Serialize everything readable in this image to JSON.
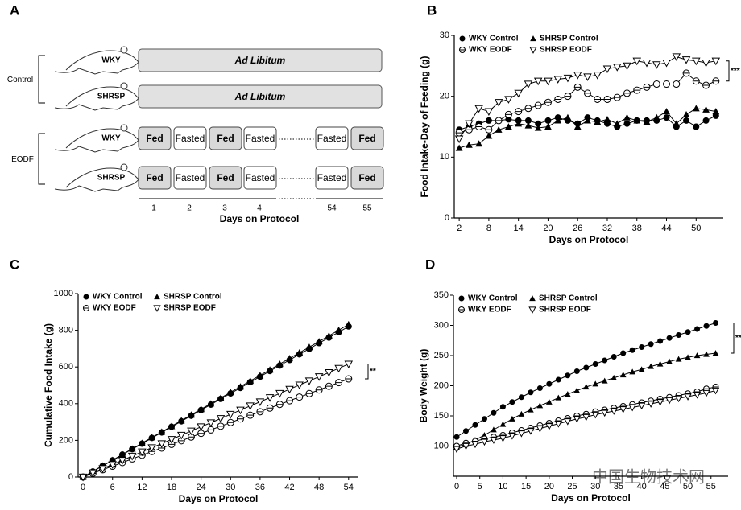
{
  "panel_labels": [
    "A",
    "B",
    "C",
    "D"
  ],
  "protocol": {
    "groups": [
      {
        "label": "Control",
        "rows": [
          {
            "strain": "WKY",
            "schedule": "Ad Libitum"
          },
          {
            "strain": "SHRSP",
            "schedule": "Ad Libitum"
          }
        ]
      },
      {
        "label": "EODF",
        "rows": [
          {
            "strain": "WKY",
            "cells": [
              "Fed",
              "Fasted",
              "Fed",
              "Fasted",
              "Fasted",
              "Fed"
            ]
          },
          {
            "strain": "SHRSP",
            "cells": [
              "Fed",
              "Fasted",
              "Fed",
              "Fasted",
              "Fasted",
              "Fed"
            ]
          }
        ]
      }
    ],
    "days": [
      "1",
      "2",
      "3",
      "4",
      "54",
      "55"
    ],
    "axis_label": "Days on Protocol"
  },
  "chart_data": [
    {
      "type": "line",
      "x_label": "Days on Protocol",
      "y_label": "Food Intake-Day of Feeding (g)",
      "x": [
        2,
        4,
        6,
        8,
        10,
        12,
        14,
        16,
        18,
        20,
        22,
        24,
        26,
        28,
        30,
        32,
        34,
        36,
        38,
        40,
        42,
        44,
        46,
        48,
        50,
        52,
        54
      ],
      "xlim": [
        1,
        55.5
      ],
      "xticks": [
        2,
        8,
        14,
        20,
        26,
        32,
        38,
        44,
        50
      ],
      "ylim": [
        0,
        30
      ],
      "yticks": [
        0,
        10,
        20,
        30
      ],
      "grid": false,
      "legend": "upper left",
      "annotation": "***",
      "series": [
        {
          "name": "WKY Control",
          "color": "#000000",
          "marker": "circle",
          "values": [
            14.5,
            15,
            15.5,
            16,
            16,
            16.2,
            16,
            16,
            15.5,
            16,
            16.5,
            16,
            15.5,
            16.5,
            16,
            15.5,
            15,
            15.5,
            16,
            16,
            16,
            16.5,
            15,
            16,
            15,
            16,
            16.8
          ]
        },
        {
          "name": "SHRSP Control",
          "color": "#000000",
          "marker": "triangle",
          "values": [
            11.5,
            12,
            12.2,
            13.5,
            14.5,
            15,
            15.5,
            15.2,
            14.8,
            15,
            16,
            16.5,
            15,
            16,
            15.8,
            16.2,
            15.5,
            16.5,
            16,
            15.8,
            16.5,
            17.5,
            15.5,
            17,
            18,
            17.8,
            17.5
          ]
        },
        {
          "name": "WKY EODF",
          "color": "#000000",
          "marker": "circle-open",
          "values": [
            14,
            14.5,
            15,
            14.5,
            16,
            17,
            17.5,
            18,
            18.5,
            19,
            19.5,
            20,
            21.5,
            20.5,
            19.5,
            19.5,
            19.8,
            20.5,
            21,
            21.5,
            22,
            22,
            22,
            23.8,
            22.5,
            21.8,
            22.5
          ]
        },
        {
          "name": "SHRSP EODF",
          "color": "#000000",
          "marker": "triangle-down-open",
          "values": [
            13,
            15.5,
            18,
            17.5,
            19,
            19.5,
            20.5,
            22,
            22.5,
            22.5,
            22.8,
            23,
            23.5,
            23.2,
            23.5,
            24.5,
            24.8,
            25,
            25.8,
            25.5,
            25.2,
            25.5,
            26.5,
            26,
            25.8,
            25.5,
            25.8
          ]
        }
      ]
    },
    {
      "type": "line",
      "x_label": "Days on Protocol",
      "y_label": "Cumulative Food Intake (g)",
      "x": [
        0,
        2,
        4,
        6,
        8,
        10,
        12,
        14,
        16,
        18,
        20,
        22,
        24,
        26,
        28,
        30,
        32,
        34,
        36,
        38,
        40,
        42,
        44,
        46,
        48,
        50,
        52,
        54
      ],
      "xlim": [
        -1,
        56
      ],
      "xticks": [
        0,
        6,
        12,
        18,
        24,
        30,
        36,
        42,
        48,
        54
      ],
      "ylim": [
        0,
        1000
      ],
      "yticks": [
        0,
        200,
        400,
        600,
        800,
        1000
      ],
      "grid": false,
      "legend": "upper left",
      "annotation": "**",
      "series": [
        {
          "name": "WKY Control",
          "color": "#000000",
          "marker": "circle",
          "values": [
            0,
            30,
            61,
            91,
            122,
            152,
            182,
            213,
            243,
            274,
            304,
            334,
            365,
            395,
            426,
            456,
            486,
            517,
            547,
            578,
            608,
            638,
            669,
            699,
            730,
            760,
            790,
            821
          ]
        },
        {
          "name": "SHRSP Control",
          "color": "#000000",
          "marker": "triangle",
          "values": [
            0,
            31,
            62,
            92,
            123,
            154,
            185,
            216,
            246,
            277,
            308,
            339,
            370,
            400,
            431,
            462,
            493,
            524,
            554,
            585,
            616,
            647,
            678,
            708,
            739,
            770,
            801,
            832
          ]
        },
        {
          "name": "WKY EODF",
          "color": "#000000",
          "marker": "circle-open",
          "values": [
            0,
            20,
            40,
            59,
            79,
            99,
            119,
            139,
            158,
            178,
            198,
            218,
            238,
            257,
            277,
            297,
            317,
            337,
            356,
            376,
            396,
            416,
            436,
            455,
            475,
            495,
            515,
            535
          ]
        },
        {
          "name": "SHRSP EODF",
          "color": "#000000",
          "marker": "triangle-down-open",
          "values": [
            0,
            23,
            46,
            68,
            91,
            114,
            137,
            160,
            182,
            205,
            228,
            251,
            274,
            296,
            319,
            342,
            365,
            388,
            410,
            433,
            456,
            479,
            502,
            524,
            547,
            570,
            593,
            616
          ]
        }
      ]
    },
    {
      "type": "line",
      "x_label": "Days on Protocol",
      "y_label": "Body Weight (g)",
      "x": [
        0,
        2,
        4,
        6,
        8,
        10,
        12,
        14,
        16,
        18,
        20,
        22,
        24,
        26,
        28,
        30,
        32,
        34,
        36,
        38,
        40,
        42,
        44,
        46,
        48,
        50,
        52,
        54,
        56
      ],
      "xlim": [
        -0.7,
        58.7
      ],
      "xticks": [
        0,
        5,
        10,
        15,
        20,
        25,
        30,
        35,
        40,
        45,
        50,
        55
      ],
      "ylim": [
        50,
        350
      ],
      "yticks": [
        100,
        150,
        200,
        250,
        300,
        350
      ],
      "grid": false,
      "legend": "upper left",
      "annotation": "**",
      "series": [
        {
          "name": "WKY Control",
          "color": "#000000",
          "marker": "circle",
          "values": [
            115,
            125,
            135,
            145,
            155,
            165,
            173,
            181,
            189,
            196,
            203,
            210,
            217,
            224,
            230,
            236,
            242,
            248,
            254,
            259,
            264,
            269,
            274,
            279,
            284,
            289,
            294,
            299,
            304
          ]
        },
        {
          "name": "SHRSP Control",
          "color": "#000000",
          "marker": "triangle",
          "values": [
            98,
            103,
            110,
            118,
            127,
            136,
            145,
            153,
            160,
            167,
            173,
            180,
            186,
            192,
            198,
            203,
            208,
            213,
            218,
            223,
            227,
            232,
            236,
            240,
            244,
            247,
            250,
            252,
            254
          ]
        },
        {
          "name": "WKY EODF",
          "color": "#000000",
          "marker": "circle-open",
          "values": [
            100,
            105,
            108,
            112,
            115,
            118,
            122,
            126,
            130,
            134,
            138,
            142,
            146,
            150,
            153,
            157,
            160,
            163,
            166,
            169,
            172,
            175,
            178,
            181,
            184,
            187,
            190,
            195,
            198
          ]
        },
        {
          "name": "SHRSP EODF",
          "color": "#000000",
          "marker": "triangle-down-open",
          "values": [
            95,
            100,
            103,
            107,
            110,
            113,
            117,
            121,
            125,
            129,
            133,
            137,
            141,
            145,
            148,
            152,
            155,
            158,
            161,
            164,
            167,
            170,
            173,
            176,
            179,
            182,
            185,
            188,
            192
          ]
        }
      ]
    }
  ],
  "watermark": "中国生物技术网"
}
